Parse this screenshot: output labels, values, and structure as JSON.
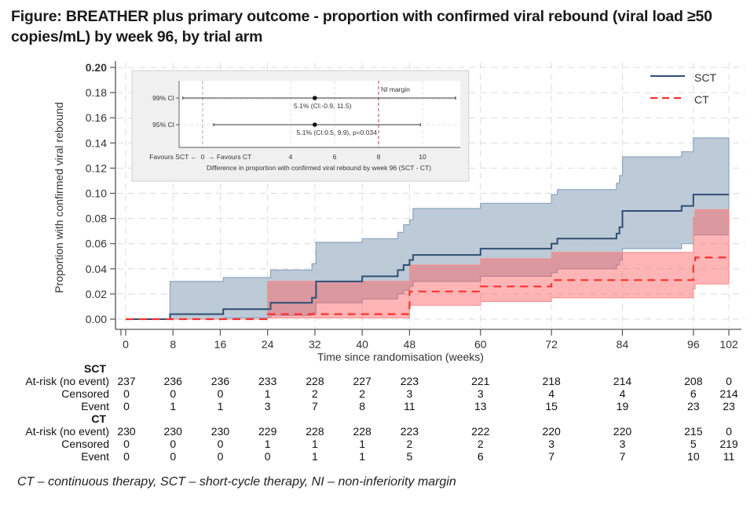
{
  "title": "Figure: BREATHER plus primary outcome - proportion with confirmed viral rebound (viral load ≥50 copies/mL) by week 96, by trial arm",
  "footer": "CT – continuous therapy, SCT – short-cycle therapy, NI – non-inferiority margin",
  "colors": {
    "sct_line": "#2f4f73",
    "sct_band": "#b9c7d5",
    "ct_line": "#ff3030",
    "ct_band": "#ffaaaa",
    "overlap": "#cf8590",
    "ni_margin": "#b04050",
    "highlight_tick": "#2a6f97"
  },
  "chart_data": [
    {
      "type": "line",
      "subtype": "step-cumulative-incidence-with-ci",
      "xlabel": "Time since randomisation (weeks)",
      "ylabel": "Proportion with confirmed viral rebound",
      "xlim": [
        0,
        102
      ],
      "ylim": [
        0,
        0.2
      ],
      "x_ticks": [
        0,
        8,
        16,
        24,
        32,
        40,
        48,
        60,
        72,
        84,
        96,
        102
      ],
      "y_ticks": [
        "0.00",
        "0.02",
        "0.04",
        "0.06",
        "0.08",
        "0.10",
        "0.12",
        "0.14",
        "0.16",
        "0.18",
        "0.20"
      ],
      "grid": true,
      "legend": {
        "position": "top-right",
        "entries": [
          "SCT",
          "CT"
        ]
      },
      "series": [
        {
          "name": "SCT",
          "style": "solid",
          "steps_x": [
            0,
            7.5,
            16.5,
            24.5,
            31.5,
            32.2,
            40,
            46,
            47,
            48,
            48.6,
            60,
            72,
            73,
            83,
            83.5,
            84,
            94,
            96,
            102
          ],
          "estimate": [
            0,
            0.004,
            0.008,
            0.013,
            0.017,
            0.03,
            0.034,
            0.039,
            0.043,
            0.047,
            0.051,
            0.056,
            0.06,
            0.064,
            0.068,
            0.073,
            0.086,
            0.09,
            0.099,
            0.099
          ],
          "ci_lower": [
            0,
            0.0,
            0.001,
            0.003,
            0.005,
            0.013,
            0.016,
            0.02,
            0.023,
            0.026,
            0.03,
            0.034,
            0.037,
            0.04,
            0.043,
            0.047,
            0.056,
            0.06,
            0.067,
            0.067
          ],
          "ci_upper": [
            0,
            0.03,
            0.033,
            0.039,
            0.044,
            0.061,
            0.064,
            0.069,
            0.075,
            0.079,
            0.088,
            0.092,
            0.099,
            0.103,
            0.108,
            0.114,
            0.129,
            0.133,
            0.144,
            0.144
          ]
        },
        {
          "name": "CT",
          "style": "dashed",
          "steps_x": [
            0,
            24,
            48,
            60,
            72,
            96,
            96.3,
            102
          ],
          "estimate": [
            0,
            0.004,
            0.022,
            0.026,
            0.031,
            0.044,
            0.049,
            0.049
          ],
          "ci_lower": [
            0,
            0.001,
            0.011,
            0.014,
            0.017,
            0.024,
            0.028,
            0.028
          ],
          "ci_upper": [
            0,
            0.03,
            0.043,
            0.048,
            0.053,
            0.081,
            0.087,
            0.087
          ]
        }
      ]
    },
    {
      "type": "scatter",
      "subtype": "forest-plot-inset",
      "xlabel": "Difference in proportion with confirmed viral rebound by week 96 (SCT - CT)",
      "x_ticks": [
        "0",
        "4",
        "6",
        "8",
        "10"
      ],
      "x_tick_values": [
        0,
        4,
        6,
        8,
        10
      ],
      "xlim": [
        -1.5,
        11.8
      ],
      "favours_left": "Favours SCT ←",
      "favours_right": "→  Favours CT",
      "ni_margin": {
        "value": 8,
        "label": "NI margin"
      },
      "rows": [
        {
          "label": "99% CI",
          "estimate": 5.1,
          "lower": -0.9,
          "upper": 11.5,
          "text": "5.1% (CI:-0.9, 11.5)"
        },
        {
          "label": "95% CI",
          "estimate": 5.1,
          "lower": 0.5,
          "upper": 9.9,
          "text": "5.1% (CI:0.5, 9.9), p=0.034"
        }
      ]
    },
    {
      "type": "table",
      "subtype": "numbers-at-risk",
      "time_points": [
        0,
        8,
        16,
        24,
        32,
        40,
        48,
        60,
        72,
        84,
        96,
        102
      ],
      "groups": [
        {
          "name": "SCT",
          "rows": [
            {
              "label": "At-risk (no event)",
              "values": [
                237,
                236,
                236,
                233,
                228,
                227,
                223,
                221,
                218,
                214,
                208,
                0
              ]
            },
            {
              "label": "Censored",
              "values": [
                0,
                0,
                0,
                1,
                2,
                2,
                3,
                3,
                4,
                4,
                6,
                214
              ]
            },
            {
              "label": "Event",
              "values": [
                0,
                1,
                1,
                3,
                7,
                8,
                11,
                13,
                15,
                19,
                23,
                23
              ]
            }
          ]
        },
        {
          "name": "CT",
          "rows": [
            {
              "label": "At-risk (no event)",
              "values": [
                230,
                230,
                230,
                229,
                228,
                228,
                223,
                222,
                220,
                220,
                215,
                0
              ]
            },
            {
              "label": "Censored",
              "values": [
                0,
                0,
                0,
                1,
                1,
                1,
                2,
                2,
                3,
                3,
                5,
                219
              ]
            },
            {
              "label": "Event",
              "values": [
                0,
                0,
                0,
                0,
                1,
                1,
                5,
                6,
                7,
                7,
                10,
                11
              ]
            }
          ]
        }
      ]
    }
  ]
}
